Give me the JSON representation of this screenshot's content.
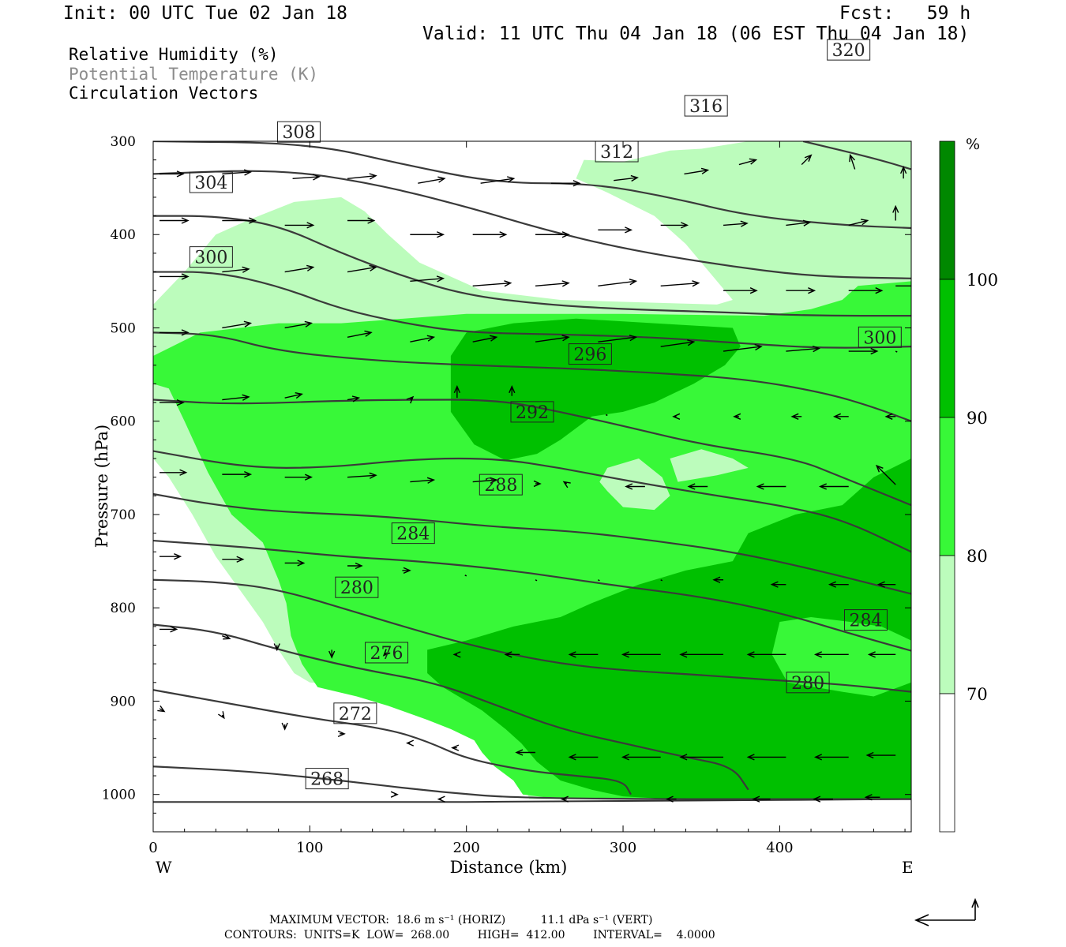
{
  "header": {
    "init": "Init: 00 UTC Tue 02 Jan 18",
    "fcst": "Fcst:   59 h",
    "valid": "Valid: 11 UTC Thu 04 Jan 18 (06 EST Thu 04 Jan 18)"
  },
  "legend": {
    "rh": "Relative Humidity (%)",
    "theta": "Potential Temperature (K)",
    "vectors": "Circulation Vectors",
    "rh_color": "#000000",
    "theta_color": "#8c8c8c"
  },
  "chart_data": {
    "type": "heatmap",
    "xlabel": "Distance (km)",
    "ylabel": "Pressure (hPa)",
    "xlim": [
      0,
      484
    ],
    "ylim": [
      1040,
      300
    ],
    "x_ticks": [
      0,
      100,
      200,
      300,
      400
    ],
    "y_ticks": [
      300,
      400,
      500,
      600,
      700,
      800,
      900,
      1000
    ],
    "x_end_labels": {
      "left": "W",
      "right": "E"
    },
    "colorbar": {
      "unit": "%",
      "levels": [
        70,
        80,
        90,
        100
      ],
      "colors": [
        "#ffffff",
        "#bcfcbc",
        "#38f838",
        "#00c000",
        "#008800"
      ]
    },
    "theta_contours": {
      "units": "K",
      "interval": 4,
      "lines": [
        {
          "label": "268",
          "pts": [
            [
              0,
              970
            ],
            [
              60,
              975
            ],
            [
              120,
              985
            ],
            [
              180,
              997
            ],
            [
              240,
              1005
            ],
            [
              484,
              1005
            ]
          ]
        },
        {
          "label": "272",
          "pts": [
            [
              0,
              888
            ],
            [
              50,
              903
            ],
            [
              100,
              918
            ],
            [
              150,
              930
            ],
            [
              175,
              943
            ],
            [
              200,
              962
            ],
            [
              240,
              975
            ],
            [
              270,
              980
            ],
            [
              300,
              985
            ],
            [
              305,
              1000
            ]
          ]
        },
        {
          "label": "276",
          "pts": [
            [
              0,
              818
            ],
            [
              40,
              825
            ],
            [
              80,
              845
            ],
            [
              130,
              865
            ],
            [
              180,
              880
            ],
            [
              220,
              905
            ],
            [
              260,
              930
            ],
            [
              300,
              945
            ],
            [
              340,
              960
            ],
            [
              370,
              970
            ],
            [
              380,
              995
            ]
          ]
        },
        {
          "label": "280",
          "pts": [
            [
              0,
              770
            ],
            [
              40,
              772
            ],
            [
              80,
              780
            ],
            [
              130,
              805
            ],
            [
              180,
              830
            ],
            [
              220,
              847
            ],
            [
              260,
              860
            ],
            [
              300,
              867
            ],
            [
              350,
              872
            ],
            [
              400,
              878
            ],
            [
              440,
              882
            ],
            [
              484,
              890
            ]
          ]
        },
        {
          "label": "284",
          "pts": [
            [
              0,
              728
            ],
            [
              60,
              735
            ],
            [
              120,
              745
            ],
            [
              170,
              750
            ],
            [
              230,
              760
            ],
            [
              290,
              775
            ],
            [
              350,
              788
            ],
            [
              400,
              805
            ],
            [
              450,
              830
            ],
            [
              484,
              846
            ]
          ]
        },
        {
          "label": "288",
          "pts": [
            [
              0,
              678
            ],
            [
              40,
              690
            ],
            [
              80,
              697
            ],
            [
              150,
              702
            ],
            [
              215,
              713
            ],
            [
              270,
              718
            ],
            [
              320,
              728
            ],
            [
              370,
              740
            ],
            [
              420,
              758
            ],
            [
              484,
              785
            ]
          ]
        },
        {
          "label": "292",
          "pts": [
            [
              0,
              632
            ],
            [
              60,
              650
            ],
            [
              110,
              650
            ],
            [
              170,
              640
            ],
            [
              220,
              640
            ],
            [
              260,
              650
            ],
            [
              300,
              663
            ],
            [
              360,
              680
            ],
            [
              400,
              690
            ],
            [
              440,
              705
            ],
            [
              484,
              740
            ]
          ]
        },
        {
          "label": "296",
          "pts": [
            [
              0,
              577
            ],
            [
              50,
              582
            ],
            [
              120,
              578
            ],
            [
              160,
              577
            ],
            [
              220,
              577
            ],
            [
              260,
              590
            ],
            [
              300,
              605
            ],
            [
              350,
              625
            ],
            [
              410,
              640
            ],
            [
              440,
              660
            ],
            [
              484,
              690
            ]
          ]
        },
        {
          "label": "300",
          "pts": [
            [
              0,
              505
            ],
            [
              40,
              507
            ],
            [
              80,
              525
            ],
            [
              140,
              535
            ],
            [
              200,
              540
            ],
            [
              260,
              543
            ],
            [
              320,
              548
            ],
            [
              380,
              555
            ],
            [
              430,
              570
            ],
            [
              460,
              585
            ],
            [
              484,
              600
            ]
          ]
        },
        {
          "label": "304",
          "pts": [
            [
              0,
              440
            ],
            [
              40,
              440
            ],
            [
              80,
              455
            ],
            [
              120,
              480
            ],
            [
              160,
              495
            ],
            [
              200,
              505
            ],
            [
              260,
              507
            ],
            [
              320,
              510
            ],
            [
              380,
              517
            ],
            [
              430,
              522
            ],
            [
              484,
              520
            ]
          ]
        },
        {
          "label": "308",
          "pts": [
            [
              0,
              380
            ],
            [
              40,
              380
            ],
            [
              80,
              390
            ],
            [
              120,
              420
            ],
            [
              160,
              445
            ],
            [
              200,
              465
            ],
            [
              250,
              475
            ],
            [
              300,
              480
            ],
            [
              360,
              483
            ],
            [
              420,
              487
            ],
            [
              484,
              487
            ]
          ]
        },
        {
          "label": "312",
          "pts": [
            [
              0,
              335
            ],
            [
              80,
              330
            ],
            [
              140,
              345
            ],
            [
              200,
              370
            ],
            [
              250,
              395
            ],
            [
              300,
              415
            ],
            [
              360,
              432
            ],
            [
              420,
              445
            ],
            [
              484,
              447
            ]
          ]
        },
        {
          "label": "316",
          "pts": [
            [
              0,
              300
            ],
            [
              100,
              302
            ],
            [
              160,
              325
            ],
            [
              220,
              345
            ],
            [
              280,
              345
            ],
            [
              330,
              360
            ],
            [
              380,
              380
            ],
            [
              440,
              390
            ],
            [
              484,
              393
            ]
          ]
        },
        {
          "label": "320",
          "pts": [
            [
              415,
              300
            ],
            [
              460,
              318
            ],
            [
              484,
              330
            ]
          ]
        }
      ]
    },
    "circulation": {
      "maximum_vector": "MAXIMUM VECTOR:  18.6 m s⁻¹ (HORIZ)          11.1 dPa s⁻¹ (VERT)",
      "contours_info": "CONTOURS:  UNITS=K  LOW=  268.00        HIGH=  412.00        INTERVAL=    4.0000"
    }
  }
}
